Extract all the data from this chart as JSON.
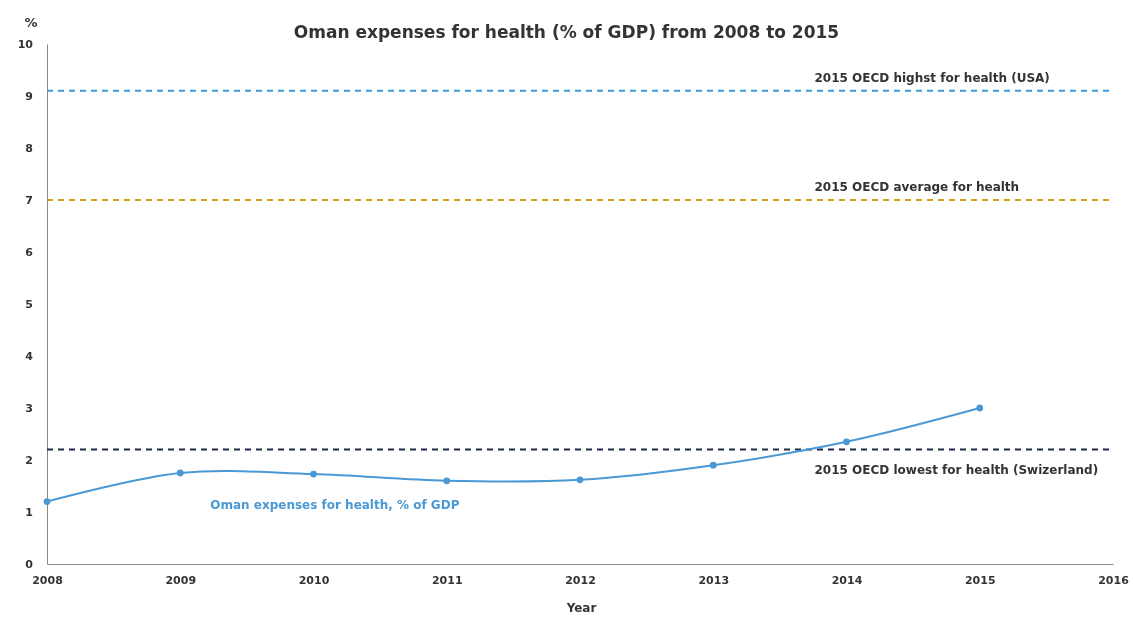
{
  "chart_data": {
    "type": "line",
    "title": "Oman expenses for health (% of GDP) from 2008 to 2015",
    "xlabel": "Year",
    "ylabel": "%",
    "x": [
      2008,
      2009,
      2010,
      2011,
      2012,
      2013,
      2014,
      2015
    ],
    "series": [
      {
        "name": "Oman expenses for health, % of GDP",
        "color": "#4a98d4",
        "values": [
          1.2,
          1.75,
          1.73,
          1.6,
          1.62,
          1.9,
          2.35,
          3.0
        ]
      }
    ],
    "xlim": [
      2008,
      2016
    ],
    "xticks": [
      2008,
      2009,
      2010,
      2011,
      2012,
      2013,
      2014,
      2015,
      2016
    ],
    "ylim": [
      0,
      10
    ],
    "yticks": [
      0,
      1,
      2,
      3,
      4,
      5,
      6,
      7,
      8,
      9,
      10
    ],
    "ref_lines": [
      {
        "axis": "y",
        "value": 9.1,
        "label": "2015 OECD highst for health (USA)",
        "color": "#3a9ad9",
        "line_style": "dashed"
      },
      {
        "axis": "y",
        "value": 7.0,
        "label": "2015 OECD average for health",
        "color": "#d4a017",
        "line_style": "dashed"
      },
      {
        "axis": "y",
        "value": 2.2,
        "label": "2015 OECD lowest for health (Swizerland)",
        "color": "#1f2a4a",
        "line_style": "dashed"
      }
    ],
    "grid": false,
    "marker": "circle",
    "line_style": "solid"
  }
}
